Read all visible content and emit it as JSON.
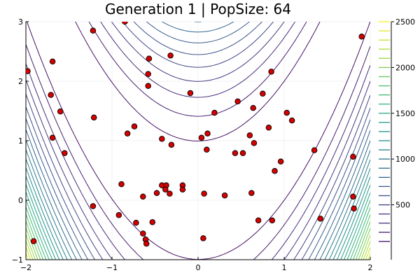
{
  "chart_data": {
    "type": "scatter",
    "title": "Generation 1 | PopSize: 64",
    "xlabel": "",
    "ylabel": "",
    "xlim": [
      -2,
      2
    ],
    "ylim": [
      -1,
      3
    ],
    "x_ticks": [
      -2,
      -1,
      0,
      1,
      2
    ],
    "y_ticks": [
      -1,
      0,
      1,
      2,
      3
    ],
    "x_tick_labels": [
      "−2",
      "−1",
      "0",
      "1",
      "2"
    ],
    "y_tick_labels": [
      "−1",
      "0",
      "1",
      "2",
      "3"
    ],
    "grid": true,
    "background": "contour",
    "contour_function": "rosenbrock",
    "contour_levels_step": 100,
    "contour_max": 2500,
    "colorbar": {
      "range": [
        0,
        2500
      ],
      "ticks": [
        500,
        1000,
        1500,
        2000,
        2500
      ],
      "tick_labels": [
        "500",
        "1000",
        "1500",
        "2000",
        "2500"
      ],
      "colormap": "viridis"
    },
    "marker_color": "#d40000",
    "points": [
      [
        -1.98,
        2.17
      ],
      [
        -1.69,
        2.33
      ],
      [
        -1.22,
        2.85
      ],
      [
        -0.85,
        3.0
      ],
      [
        1.9,
        2.75
      ],
      [
        -0.57,
        2.38
      ],
      [
        -0.32,
        2.43
      ],
      [
        -0.58,
        2.12
      ],
      [
        -0.58,
        1.92
      ],
      [
        -1.71,
        1.77
      ],
      [
        -0.09,
        1.8
      ],
      [
        0.75,
        1.79
      ],
      [
        0.85,
        2.16
      ],
      [
        0.46,
        1.66
      ],
      [
        0.64,
        1.55
      ],
      [
        -1.6,
        1.49
      ],
      [
        -1.21,
        1.39
      ],
      [
        0.19,
        1.47
      ],
      [
        1.03,
        1.47
      ],
      [
        1.09,
        1.34
      ],
      [
        0.82,
        1.22
      ],
      [
        -0.74,
        1.24
      ],
      [
        -0.82,
        1.12
      ],
      [
        -1.69,
        1.05
      ],
      [
        0.11,
        1.12
      ],
      [
        0.04,
        1.05
      ],
      [
        0.6,
        1.09
      ],
      [
        -0.42,
        1.03
      ],
      [
        -0.31,
        0.93
      ],
      [
        0.65,
        0.96
      ],
      [
        -1.55,
        0.79
      ],
      [
        0.1,
        0.85
      ],
      [
        0.43,
        0.79
      ],
      [
        0.52,
        0.79
      ],
      [
        1.35,
        0.84
      ],
      [
        1.8,
        0.73
      ],
      [
        0.96,
        0.65
      ],
      [
        0.89,
        0.49
      ],
      [
        -0.89,
        0.27
      ],
      [
        -0.42,
        0.25
      ],
      [
        -0.37,
        0.25
      ],
      [
        -0.18,
        0.25
      ],
      [
        -0.38,
        0.18
      ],
      [
        -0.18,
        0.18
      ],
      [
        -0.48,
        0.12
      ],
      [
        -0.33,
        0.11
      ],
      [
        0.07,
        0.11
      ],
      [
        0.31,
        0.08
      ],
      [
        0.62,
        0.12
      ],
      [
        -0.64,
        0.06
      ],
      [
        1.8,
        0.06
      ],
      [
        -1.22,
        -0.1
      ],
      [
        1.81,
        -0.14
      ],
      [
        -0.92,
        -0.25
      ],
      [
        1.42,
        -0.31
      ],
      [
        0.7,
        -0.34
      ],
      [
        0.86,
        -0.34
      ],
      [
        -0.72,
        -0.38
      ],
      [
        -0.53,
        -0.37
      ],
      [
        -0.64,
        -0.56
      ],
      [
        -0.61,
        -0.66
      ],
      [
        0.06,
        -0.64
      ],
      [
        -0.6,
        -0.73
      ],
      [
        -1.91,
        -0.69
      ]
    ]
  }
}
